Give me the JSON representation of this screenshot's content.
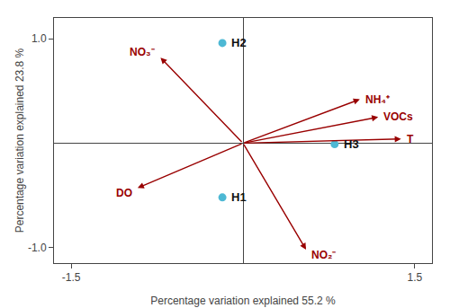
{
  "chart_data": {
    "type": "biplot",
    "xlabel": "Percentage variation explained 55.2 %",
    "ylabel": "Percentage variation explained 23.8 %",
    "xlim": [
      -1.65,
      1.65
    ],
    "ylim": [
      -1.15,
      1.2
    ],
    "xticks": [
      -1.5,
      1.5
    ],
    "yticks": [
      {
        "value": -1.0,
        "label": "-1.0"
      },
      {
        "value": 1.0,
        "label": "1.0"
      }
    ],
    "grid": false,
    "arrows": {
      "color": "#990000",
      "labels": [
        "T",
        "VOCs",
        "NH₄⁺",
        "NO₃⁻",
        "DO",
        "NO₂⁻"
      ],
      "x": [
        1.38,
        1.18,
        1.02,
        -0.72,
        -0.92,
        0.55
      ],
      "y": [
        0.04,
        0.25,
        0.42,
        0.82,
        -0.43,
        -1.02
      ]
    },
    "points": {
      "color": "#4db8d4",
      "labels": [
        "H2",
        "H1",
        "H3"
      ],
      "x": [
        -0.18,
        -0.18,
        0.8
      ],
      "y": [
        0.96,
        -0.52,
        -0.01
      ]
    }
  }
}
